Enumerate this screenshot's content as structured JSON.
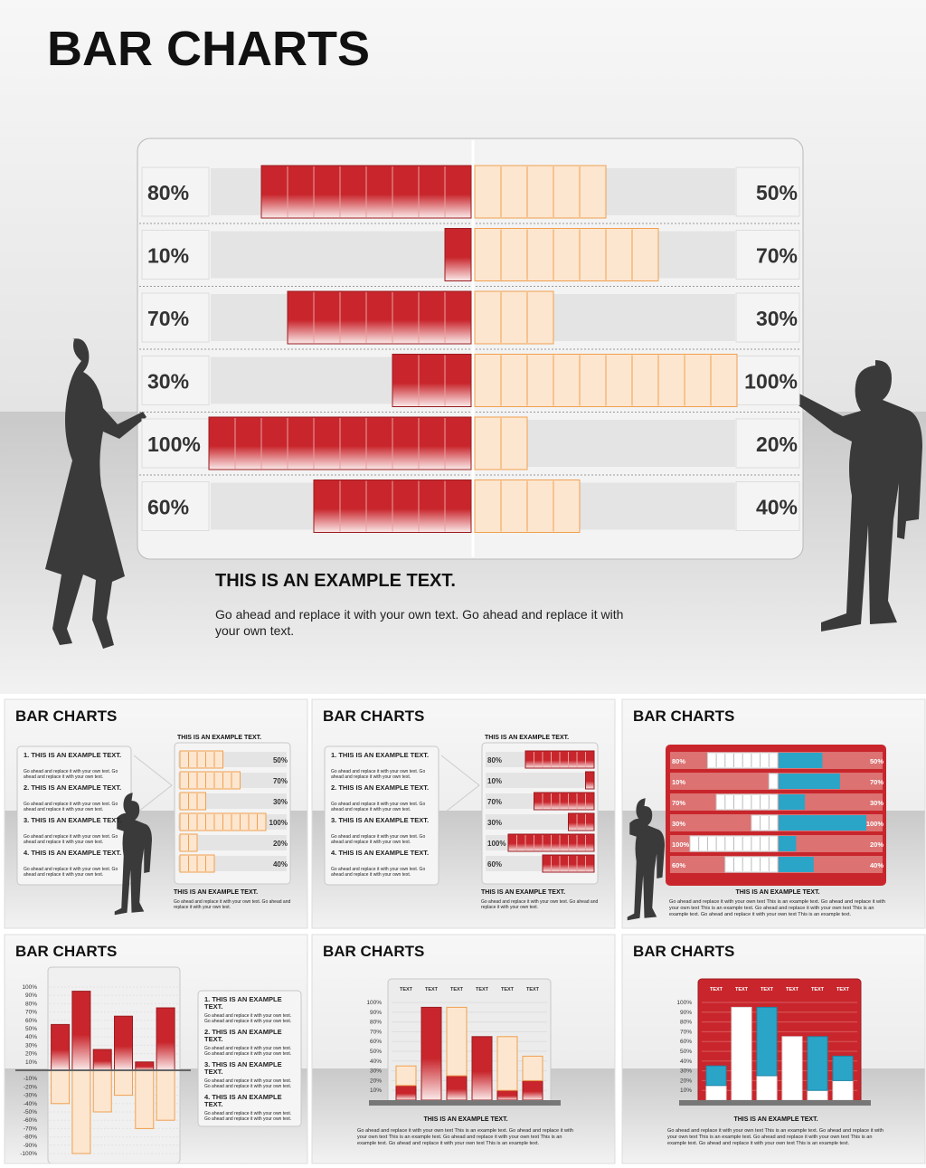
{
  "title": "BAR CHARTS",
  "chart_data": [
    {
      "type": "butterfly",
      "heading": "THIS IS AN EXAMPLE TEXT.",
      "body": "Go ahead and replace it with your own text. Go ahead and replace it with your own text.",
      "xlim": [
        0,
        100
      ],
      "series": [
        {
          "color": "#c8262c",
          "values": [
            80,
            10,
            70,
            30,
            100,
            60
          ],
          "value_labels": [
            "80%",
            "10%",
            "70%",
            "30%",
            "100%",
            "60%"
          ]
        },
        {
          "color": "#fcd3ab",
          "values": [
            50,
            70,
            30,
            100,
            20,
            40
          ],
          "value_labels": [
            "50%",
            "70%",
            "30%",
            "100%",
            "20%",
            "40%"
          ]
        }
      ]
    },
    {
      "type": "list-bar",
      "title": "BAR CHARTS",
      "subtitle": "THIS IS AN EXAMPLE TEXT.",
      "heading": "THIS IS AN EXAMPLE TEXT.",
      "body": "Go ahead and replace it with your own text. Go ahead and replace it with your own text.",
      "xlim": [
        0,
        100
      ],
      "items": [
        {
          "title": "1. THIS IS AN EXAMPLE TEXT.",
          "text": "Go ahead and replace it with your own text. Go ahead and replace it with your own text."
        },
        {
          "title": "2. THIS IS AN EXAMPLE TEXT.",
          "text": "Go ahead and replace it with your own text. Go ahead and replace it with your own text."
        },
        {
          "title": "3. THIS IS AN EXAMPLE TEXT.",
          "text": "Go ahead and replace it with your own text. Go ahead and replace it with your own text."
        },
        {
          "title": "4. THIS IS AN EXAMPLE TEXT.",
          "text": "Go ahead and replace it with your own text. Go ahead and replace it with your own text."
        }
      ],
      "series": [
        {
          "color": "#fcd3ab",
          "values": [
            50,
            70,
            30,
            100,
            20,
            40
          ],
          "value_labels": [
            "50%",
            "70%",
            "30%",
            "100%",
            "20%",
            "40%"
          ]
        }
      ]
    },
    {
      "type": "list-bar-left",
      "title": "BAR CHARTS",
      "subtitle": "THIS IS AN EXAMPLE TEXT.",
      "heading": "THIS IS AN EXAMPLE TEXT.",
      "body": "Go ahead and replace it with your own text. Go ahead and replace it with your own text.",
      "xlim": [
        0,
        100
      ],
      "items": [
        {
          "title": "1. THIS IS AN EXAMPLE TEXT.",
          "text": "Go ahead and replace it with your own text. Go ahead and replace it with your own text."
        },
        {
          "title": "2. THIS IS AN EXAMPLE TEXT.",
          "text": "Go ahead and replace it with your own text. Go ahead and replace it with your own text."
        },
        {
          "title": "3. THIS IS AN EXAMPLE TEXT.",
          "text": "Go ahead and replace it with your own text. Go ahead and replace it with your own text."
        },
        {
          "title": "4. THIS IS AN EXAMPLE TEXT.",
          "text": "Go ahead and replace it with your own text. Go ahead and replace it with your own text."
        }
      ],
      "series": [
        {
          "color": "#c8262c",
          "values": [
            80,
            10,
            70,
            30,
            100,
            60
          ],
          "value_labels": [
            "80%",
            "10%",
            "70%",
            "30%",
            "100%",
            "60%"
          ]
        }
      ]
    },
    {
      "type": "butterfly-red",
      "title": "BAR CHARTS",
      "heading": "THIS IS AN EXAMPLE TEXT.",
      "body": "Go ahead and replace it with your own text This is an example text. Go ahead and replace it with your own text This is an example text. Go ahead and replace it with your own text This is an example text. Go ahead and replace it with your own text This is an example text.",
      "xlim": [
        0,
        100
      ],
      "series": [
        {
          "color": "#ffffff",
          "values": [
            80,
            10,
            70,
            30,
            100,
            60
          ],
          "value_labels": [
            "80%",
            "10%",
            "70%",
            "30%",
            "100%",
            "60%"
          ]
        },
        {
          "color": "#2aa5c8",
          "values": [
            50,
            70,
            30,
            100,
            20,
            40
          ],
          "value_labels": [
            "50%",
            "70%",
            "30%",
            "100%",
            "20%",
            "40%"
          ]
        }
      ]
    },
    {
      "type": "bar-pn",
      "title": "BAR CHARTS",
      "ylim": [
        -100,
        100
      ],
      "yticks": [
        {
          "value": 100,
          "label": "100%"
        },
        {
          "value": 90,
          "label": "90%"
        },
        {
          "value": 80,
          "label": "80%"
        },
        {
          "value": 70,
          "label": "70%"
        },
        {
          "value": 60,
          "label": "60%"
        },
        {
          "value": 50,
          "label": "50%"
        },
        {
          "value": 40,
          "label": "40%"
        },
        {
          "value": 30,
          "label": "30%"
        },
        {
          "value": 20,
          "label": "20%"
        },
        {
          "value": 10,
          "label": "10%"
        },
        {
          "value": -10,
          "label": "-10%"
        },
        {
          "value": -20,
          "label": "-20%"
        },
        {
          "value": -30,
          "label": "-30%"
        },
        {
          "value": -40,
          "label": "-40%"
        },
        {
          "value": -50,
          "label": "-50%"
        },
        {
          "value": -60,
          "label": "-60%"
        },
        {
          "value": -70,
          "label": "-70%"
        },
        {
          "value": -80,
          "label": "-80%"
        },
        {
          "value": -90,
          "label": "-90%"
        },
        {
          "value": -100,
          "label": "-100%"
        }
      ],
      "items": [
        {
          "title": "1. THIS IS AN EXAMPLE TEXT.",
          "text": "Go ahead and replace it with your own text. Go ahead and replace it with your own text."
        },
        {
          "title": "2. THIS IS AN EXAMPLE TEXT.",
          "text": "Go ahead and replace it with your own text. Go ahead and replace it with your own text."
        },
        {
          "title": "3. THIS IS AN EXAMPLE TEXT.",
          "text": "Go ahead and replace it with your own text. Go ahead and replace it with your own text."
        },
        {
          "title": "4. THIS IS AN EXAMPLE TEXT.",
          "text": "Go ahead and replace it with your own text. Go ahead and replace it with your own text."
        }
      ],
      "series": [
        {
          "color": "#c8262c",
          "values": [
            55,
            95,
            25,
            65,
            10,
            75
          ]
        },
        {
          "color": "#fcd3ab",
          "values": [
            -40,
            -100,
            -50,
            -30,
            -70,
            -60
          ]
        }
      ]
    },
    {
      "type": "stacked",
      "title": "BAR CHARTS",
      "heading": "THIS IS AN EXAMPLE TEXT.",
      "body": "Go ahead and replace it with your own text This is an example text. Go ahead and replace it with your own text This is an example text. Go ahead and replace it with your own text This is an example text. Go ahead and replace it with your own text This is an example text.",
      "categories": [
        "TEXT",
        "TEXT",
        "TEXT",
        "TEXT",
        "TEXT",
        "TEXT"
      ],
      "ylim": [
        0,
        100
      ],
      "yticks": [
        {
          "value": 100,
          "label": "100%"
        },
        {
          "value": 90,
          "label": "90%"
        },
        {
          "value": 80,
          "label": "80%"
        },
        {
          "value": 70,
          "label": "70%"
        },
        {
          "value": 60,
          "label": "60%"
        },
        {
          "value": 50,
          "label": "50%"
        },
        {
          "value": 40,
          "label": "40%"
        },
        {
          "value": 30,
          "label": "30%"
        },
        {
          "value": 20,
          "label": "20%"
        },
        {
          "value": 10,
          "label": "10%"
        }
      ],
      "series": [
        {
          "color": "#c8262c",
          "values": [
            15,
            95,
            25,
            65,
            10,
            20
          ]
        },
        {
          "color": "#fcd3ab",
          "values": [
            20,
            0,
            70,
            0,
            55,
            25
          ]
        }
      ]
    },
    {
      "type": "stacked-red",
      "title": "BAR CHARTS",
      "heading": "THIS IS AN EXAMPLE TEXT.",
      "body": "Go ahead and replace it with your own text This is an example text. Go ahead and replace it with your own text This is an example text. Go ahead and replace it with your own text This is an example text. Go ahead and replace it with your own text This is an example text.",
      "categories": [
        "TEXT",
        "TEXT",
        "TEXT",
        "TEXT",
        "TEXT",
        "TEXT"
      ],
      "ylim": [
        0,
        100
      ],
      "yticks": [
        {
          "value": 100,
          "label": "100%"
        },
        {
          "value": 90,
          "label": "90%"
        },
        {
          "value": 80,
          "label": "80%"
        },
        {
          "value": 70,
          "label": "70%"
        },
        {
          "value": 60,
          "label": "60%"
        },
        {
          "value": 50,
          "label": "50%"
        },
        {
          "value": 40,
          "label": "40%"
        },
        {
          "value": 30,
          "label": "30%"
        },
        {
          "value": 20,
          "label": "20%"
        },
        {
          "value": 10,
          "label": "10%"
        }
      ],
      "series": [
        {
          "color": "#ffffff",
          "values": [
            15,
            95,
            25,
            65,
            10,
            20
          ]
        },
        {
          "color": "#2aa5c8",
          "values": [
            20,
            0,
            70,
            0,
            55,
            25
          ]
        }
      ]
    }
  ]
}
